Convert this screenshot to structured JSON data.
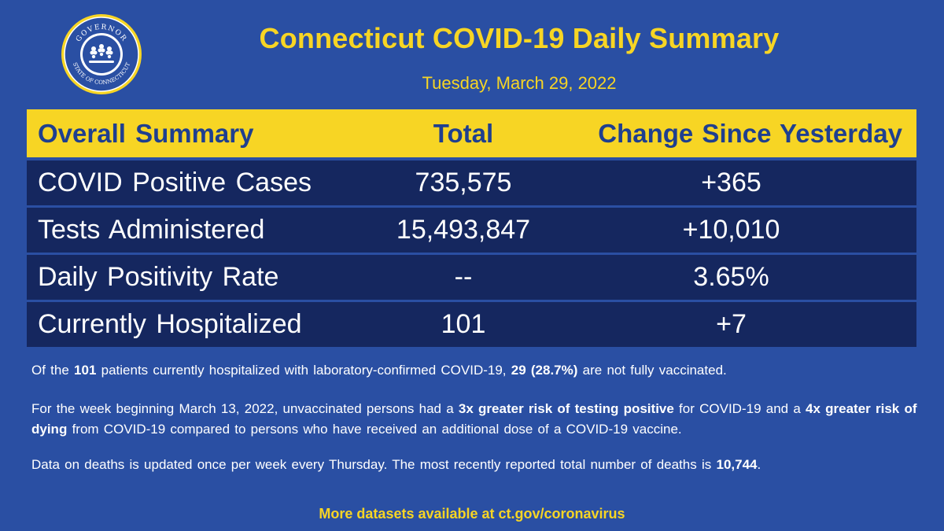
{
  "header": {
    "title": "Connecticut COVID-19 Daily Summary",
    "date": "Tuesday, March 29, 2022",
    "seal_text_top": "GOVERNOR",
    "seal_text_bottom": "STATE OF CONNECTICUT"
  },
  "table": {
    "columns": [
      "Overall Summary",
      "Total",
      "Change Since Yesterday"
    ],
    "rows": [
      {
        "label": "COVID Positive Cases",
        "total": "735,575",
        "change": "+365"
      },
      {
        "label": "Tests Administered",
        "total": "15,493,847",
        "change": "+10,010"
      },
      {
        "label": "Daily Positivity Rate",
        "total": "--",
        "change": "3.65%"
      },
      {
        "label": "Currently Hospitalized",
        "total": "101",
        "change": "+7"
      }
    ]
  },
  "notes": {
    "p1": {
      "a": "Of the ",
      "b": "101",
      "c": " patients currently hospitalized with laboratory-confirmed COVID-19, ",
      "d": "29 (28.7%)",
      "e": " are not fully vaccinated."
    },
    "p2": {
      "a": "For the week beginning March 13, 2022, unvaccinated persons had a ",
      "b": "3x greater risk of testing positive",
      "c": " for COVID-19 and a ",
      "d": "4x greater risk of dying",
      "e": " from COVID-19 compared to persons who have received an additional dose of a COVID-19 vaccine."
    },
    "p3": {
      "a": "Data on deaths is updated once per week every Thursday. The most recently reported total number of deaths is ",
      "b": "10,744",
      "c": "."
    }
  },
  "footer": {
    "text": "More datasets available at ct.gov/coronavirus"
  },
  "colors": {
    "background": "#2a4fa3",
    "accent": "#f7d524",
    "row": "#15275f"
  }
}
